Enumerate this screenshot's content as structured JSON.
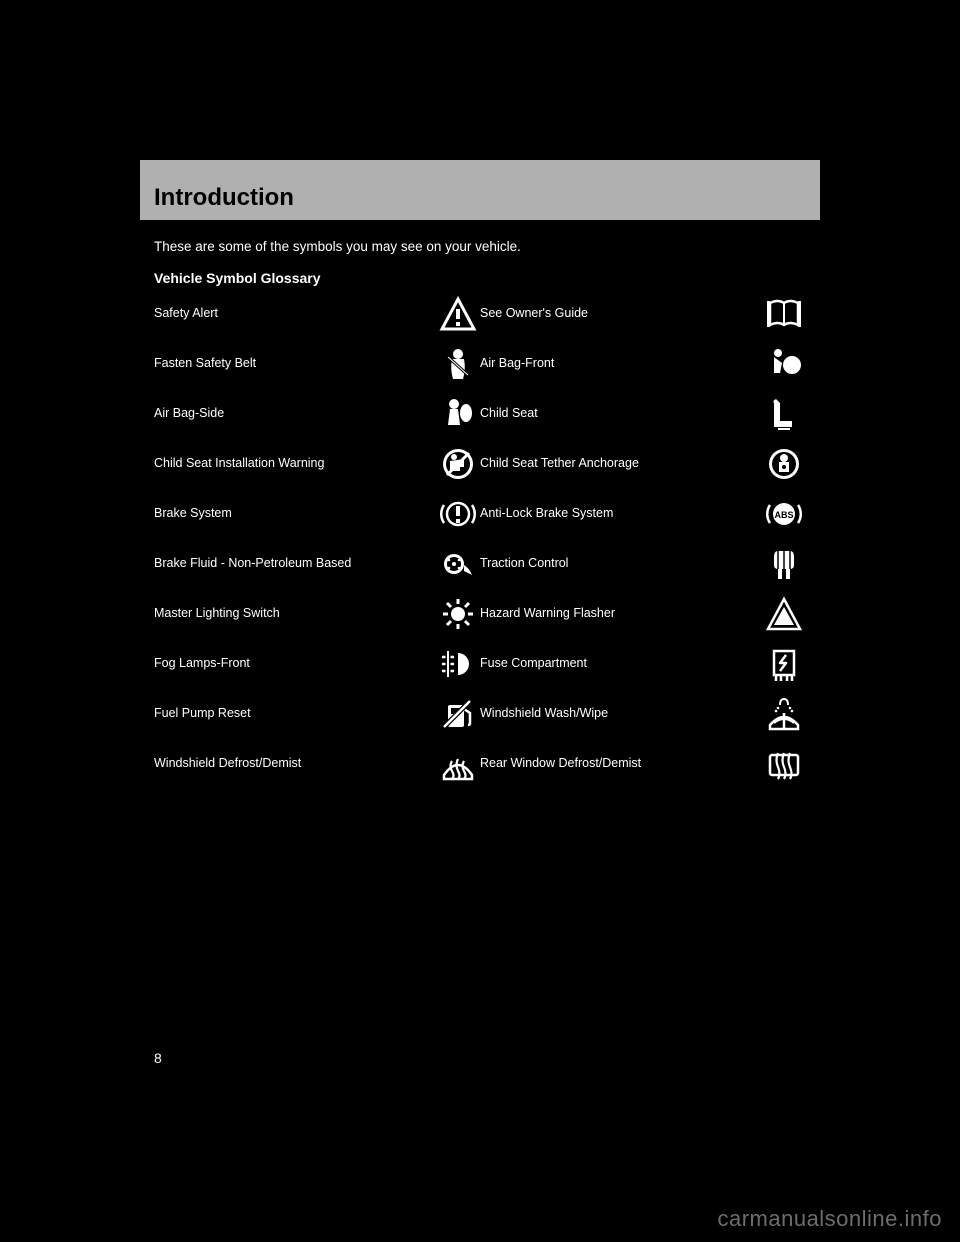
{
  "header": {
    "title": "Introduction"
  },
  "intro_text": "These are some of the symbols you may see on your vehicle.",
  "glossary_title": "Vehicle Symbol Glossary",
  "page_number": "8",
  "watermark": "carmanualsonline.info",
  "colors": {
    "page_bg": "#000000",
    "text": "#ffffff",
    "header_bg": "#b0b0b0",
    "header_text": "#000000",
    "icon_fill": "#ffffff",
    "watermark": "#6d6d6d"
  },
  "rows": [
    {
      "left": {
        "label": "Safety Alert",
        "icon": "warning-triangle"
      },
      "right": {
        "label": "See Owner's Guide",
        "icon": "book"
      }
    },
    {
      "left": {
        "label": "Fasten Safety Belt",
        "icon": "seatbelt"
      },
      "right": {
        "label": "Air Bag-Front",
        "icon": "airbag-front"
      }
    },
    {
      "left": {
        "label": "Air Bag-Side",
        "icon": "airbag-side"
      },
      "right": {
        "label": "Child Seat",
        "icon": "child-seat"
      }
    },
    {
      "left": {
        "label": "Child Seat Installation Warning",
        "icon": "child-seat-warning"
      },
      "right": {
        "label": "Child Seat Tether Anchorage",
        "icon": "tether-anchor"
      }
    },
    {
      "left": {
        "label": "Brake System",
        "icon": "brake"
      },
      "right": {
        "label": "Anti-Lock Brake System",
        "icon": "abs"
      }
    },
    {
      "left": {
        "label": "Brake Fluid - Non-Petroleum Based",
        "icon": "brake-fluid"
      },
      "right": {
        "label": "Traction Control",
        "icon": "traction"
      }
    },
    {
      "left": {
        "label": "Master Lighting Switch",
        "icon": "lighting"
      },
      "right": {
        "label": "Hazard Warning Flasher",
        "icon": "hazard"
      }
    },
    {
      "left": {
        "label": "Fog Lamps-Front",
        "icon": "fog-lamp"
      },
      "right": {
        "label": "Fuse Compartment",
        "icon": "fuse"
      }
    },
    {
      "left": {
        "label": "Fuel Pump Reset",
        "icon": "fuel-reset"
      },
      "right": {
        "label": "Windshield Wash/Wipe",
        "icon": "wash-wipe"
      }
    },
    {
      "left": {
        "label": "Windshield Defrost/Demist",
        "icon": "defrost-front"
      },
      "right": {
        "label": "Rear Window Defrost/Demist",
        "icon": "defrost-rear"
      }
    }
  ]
}
